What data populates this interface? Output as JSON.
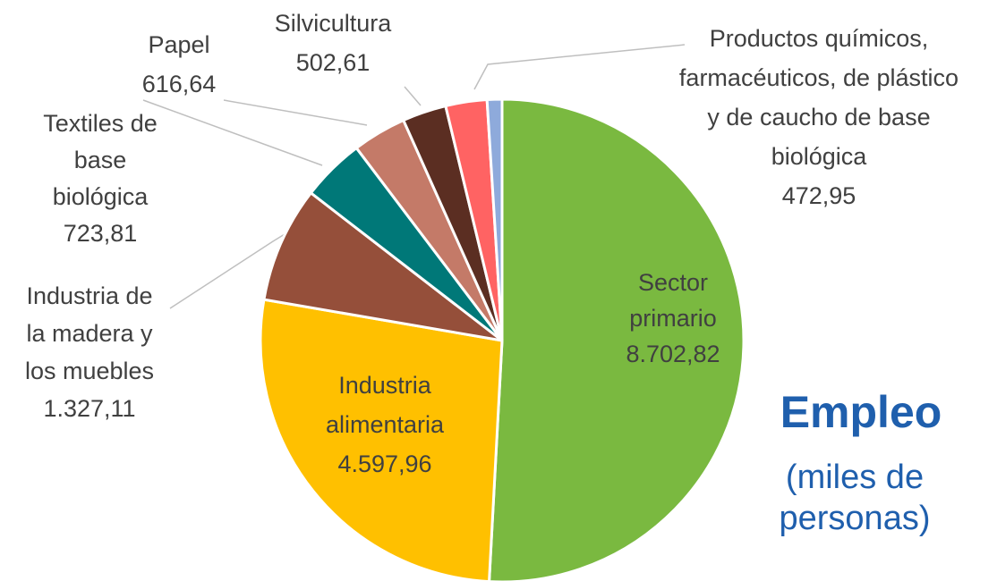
{
  "chart_data": {
    "type": "pie",
    "title": "Empleo",
    "subtitle": "(miles de personas)",
    "categories": [
      "Sector primario",
      "Industria alimentaria",
      "Industria de la madera y los muebles",
      "Textiles de base biológica",
      "Papel",
      "Silvicultura",
      "Productos químicos, farmacéuticos, de plástico y de caucho de base biológica",
      null
    ],
    "values": [
      8702.82,
      4597.96,
      1327.11,
      723.81,
      616.64,
      502.61,
      472.95,
      170
    ],
    "value_labels": [
      "8.702,82",
      "4.597,96",
      "1.327,11",
      "723,81",
      "616,64",
      "502,61",
      "472,95",
      null
    ],
    "colors": [
      "#7ab940",
      "#ffc000",
      "#954f3a",
      "#007878",
      "#c47a68",
      "#5b2e22",
      "#ff6363",
      "#8eaadb"
    ]
  }
}
